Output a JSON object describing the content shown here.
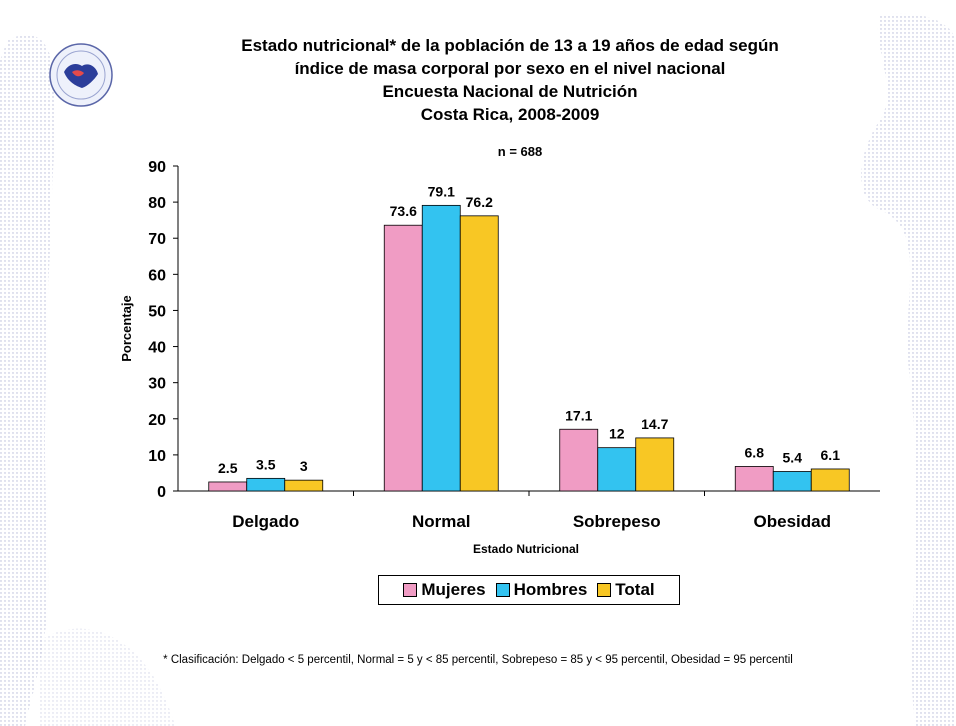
{
  "title_lines": [
    "Estado nutricional* de la población de 13 a 19 años de edad según",
    "índice de masa corporal por sexo en el nivel nacional",
    "Encuesta Nacional de Nutrición",
    "Costa Rica, 2008-2009"
  ],
  "footnote": "* Clasificación: Delgado < 5 percentil, Normal = 5 y < 85 percentil, Sobrepeso = 85 y < 95 percentil, Obesidad = 95 percentil",
  "chart_data": {
    "type": "bar",
    "title": "Estado nutricional* de la población de 13 a 19 años de edad según índice de masa corporal por sexo en el nivel nacional",
    "subtitle": "n = 688",
    "xlabel": "Estado Nutricional",
    "ylabel": "Porcentaje",
    "ylim": [
      0,
      90
    ],
    "yticks": [
      0,
      10,
      20,
      30,
      40,
      50,
      60,
      70,
      80,
      90
    ],
    "categories": [
      "Delgado",
      "Normal",
      "Sobrepeso",
      "Obesidad"
    ],
    "series": [
      {
        "name": "Mujeres",
        "color": "#f09cc4",
        "values": [
          2.5,
          73.6,
          17.1,
          6.8
        ]
      },
      {
        "name": "Hombres",
        "color": "#33c3f0",
        "values": [
          3.5,
          79.1,
          12,
          5.4
        ]
      },
      {
        "name": "Total",
        "color": "#f8c724",
        "values": [
          3,
          76.2,
          14.7,
          6.1
        ]
      }
    ],
    "legend": "bottom",
    "grid": false
  }
}
